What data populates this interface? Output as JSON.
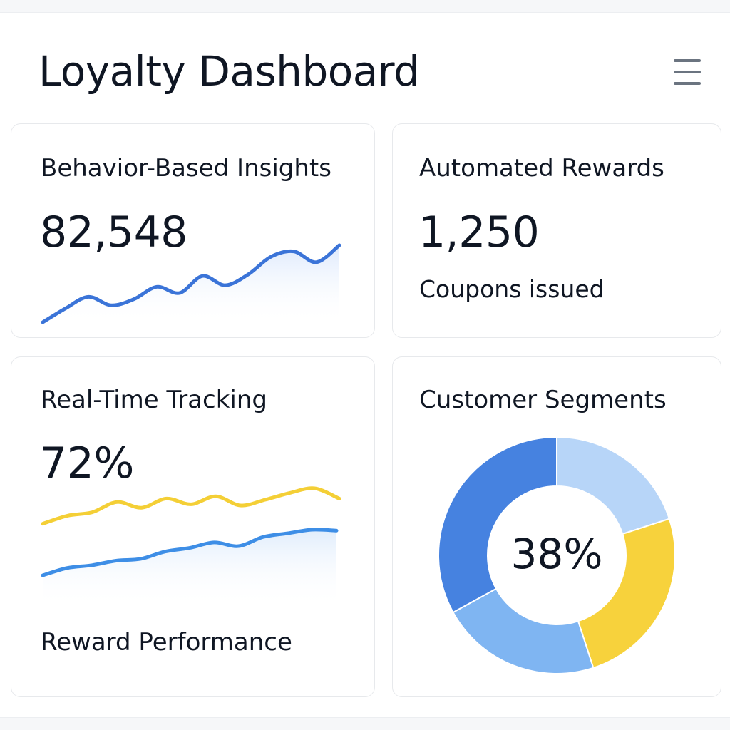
{
  "header": {
    "title": "Loyalty Dashboard",
    "menu_icon": "hamburger-menu-icon"
  },
  "cards": {
    "insights": {
      "title": "Behavior-Based Insights",
      "value": "82,548",
      "trend": [
        0.0,
        0.18,
        0.33,
        0.22,
        0.3,
        0.46,
        0.38,
        0.6,
        0.48,
        0.62,
        0.85,
        0.92,
        0.78,
        1.0
      ]
    },
    "rewards": {
      "title": "Automated Rewards",
      "value": "1,250",
      "subtitle": "Coupons issued"
    },
    "tracking": {
      "title": "Real-Time Tracking",
      "value": "72%",
      "footer": "Reward Performance",
      "series_a": [
        0.38,
        0.52,
        0.58,
        0.76,
        0.66,
        0.82,
        0.72,
        0.86,
        0.7,
        0.8,
        0.92,
        1.0,
        0.82
      ],
      "series_b": [
        0.0,
        0.16,
        0.22,
        0.32,
        0.36,
        0.52,
        0.6,
        0.72,
        0.64,
        0.84,
        0.92,
        1.0,
        0.98
      ]
    },
    "segments": {
      "title": "Customer Segments",
      "center_label": "38%",
      "slices": [
        {
          "value": 20,
          "color": "#b7d5f8"
        },
        {
          "value": 25,
          "color": "#f7d23c"
        },
        {
          "value": 22,
          "color": "#7fb5f2"
        },
        {
          "value": 33,
          "color": "#4682e0"
        }
      ]
    }
  },
  "colors": {
    "primary_blue": "#3b74d8",
    "accent_yellow": "#f4cf36",
    "line_blue": "#3e8ee6"
  }
}
